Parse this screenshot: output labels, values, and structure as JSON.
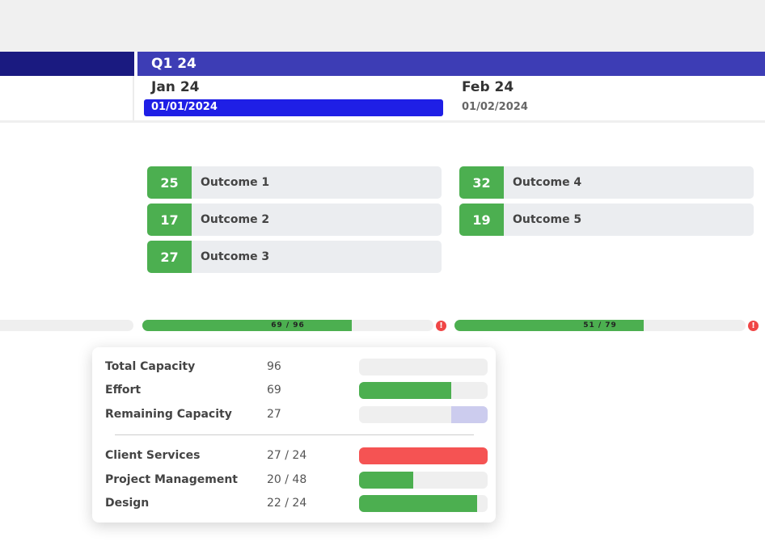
{
  "timeline": {
    "quarter": "Q1 24",
    "months": [
      {
        "name": "Jan 24",
        "date": "01/01/2024",
        "active": true
      },
      {
        "name": "Feb 24",
        "date": "01/02/2024",
        "active": false
      }
    ]
  },
  "outcomes": {
    "jan": [
      {
        "count": "25",
        "label": "Outcome 1"
      },
      {
        "count": "17",
        "label": "Outcome 2"
      },
      {
        "count": "27",
        "label": "Outcome 3"
      }
    ],
    "feb": [
      {
        "count": "32",
        "label": "Outcome 4"
      },
      {
        "count": "19",
        "label": "Outcome 5"
      }
    ]
  },
  "capacity_bars": [
    {
      "label": "69 / 96",
      "fraction": 0.72
    },
    {
      "label": "51 / 79",
      "fraction": 0.65
    }
  ],
  "warning_icon": "!",
  "popup": {
    "summary": [
      {
        "label": "Total Capacity",
        "value": "96",
        "fraction": 0,
        "color": "#efefef"
      },
      {
        "label": "Effort",
        "value": "69",
        "fraction": 0.72,
        "color": "#4caf50"
      },
      {
        "label": "Remaining Capacity",
        "value": "27",
        "fraction": 0.28,
        "color": "#ccccee",
        "align": "right"
      }
    ],
    "teams": [
      {
        "label": "Client Services",
        "value": "27 / 24",
        "fraction": 1.0,
        "color": "#f55353"
      },
      {
        "label": "Project Management",
        "value": "20 / 48",
        "fraction": 0.42,
        "color": "#4caf50"
      },
      {
        "label": "Design",
        "value": "22 / 24",
        "fraction": 0.92,
        "color": "#4caf50"
      }
    ]
  },
  "colors": {
    "accent_dark": "#1a1a80",
    "accent": "#3d3db5",
    "active_date": "#1f1fe6",
    "success": "#4caf50",
    "danger": "#f55353"
  }
}
